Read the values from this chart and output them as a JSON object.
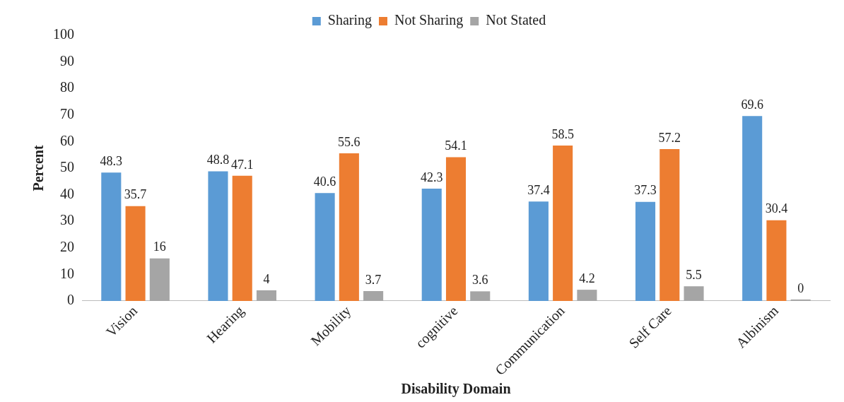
{
  "chart_data": {
    "type": "bar",
    "xlabel": "Disability Domain",
    "ylabel": "Percent",
    "categories": [
      "Vision",
      "Hearing",
      "Mobility",
      "cognitive",
      "Communication",
      "Self Care",
      "Albinism"
    ],
    "series": [
      {
        "name": "Sharing",
        "color": "#5b9bd5",
        "values": [
          48.3,
          48.8,
          40.6,
          42.3,
          37.4,
          37.3,
          69.6
        ]
      },
      {
        "name": "Not Sharing",
        "color": "#ed7d31",
        "values": [
          35.7,
          47.1,
          55.6,
          54.1,
          58.5,
          57.2,
          30.4
        ]
      },
      {
        "name": "Not Stated",
        "color": "#a5a5a5",
        "values": [
          16,
          4,
          3.7,
          3.6,
          4.2,
          5.5,
          0
        ]
      }
    ],
    "ylim": [
      0,
      100
    ],
    "yticks": [
      0,
      10,
      20,
      30,
      40,
      50,
      60,
      70,
      80,
      90,
      100
    ],
    "grid": false,
    "legend": "top",
    "data_labels": true
  }
}
